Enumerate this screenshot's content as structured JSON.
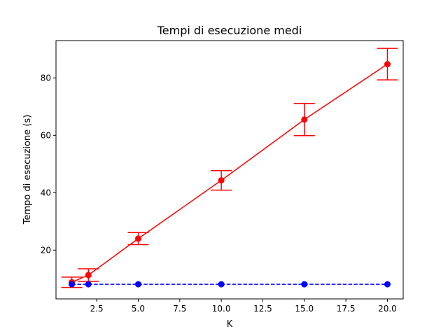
{
  "chart_data": {
    "type": "line",
    "title": "Tempi di esecuzione medi",
    "xlabel": "K",
    "ylabel": "Tempo di esecuzione (s)",
    "xlim": [
      0.05,
      20.95
    ],
    "ylim": [
      3,
      93
    ],
    "x_ticks": [
      2.5,
      5.0,
      7.5,
      10.0,
      12.5,
      15.0,
      17.5,
      20.0
    ],
    "x_tick_labels": [
      "2.5",
      "5.0",
      "7.5",
      "10.0",
      "12.5",
      "15.0",
      "17.5",
      "20.0"
    ],
    "y_ticks": [
      20,
      40,
      60,
      80
    ],
    "y_tick_labels": [
      "20",
      "40",
      "60",
      "80"
    ],
    "grid": false,
    "series": [
      {
        "color": "#ff0000",
        "line_style": "solid",
        "marker": "circle",
        "x": [
          1,
          2,
          5,
          10,
          15,
          20
        ],
        "y": [
          8.8,
          11.3,
          24.0,
          44.3,
          65.5,
          84.8
        ],
        "error": [
          1.8,
          2.2,
          2.1,
          3.4,
          5.6,
          5.5
        ]
      },
      {
        "color": "#0000ff",
        "line_style": "dashed",
        "marker": "circle",
        "x": [
          1,
          2,
          5,
          10,
          15,
          20
        ],
        "y": [
          8.1,
          8.1,
          8.1,
          8.1,
          8.1,
          8.1
        ]
      }
    ]
  }
}
